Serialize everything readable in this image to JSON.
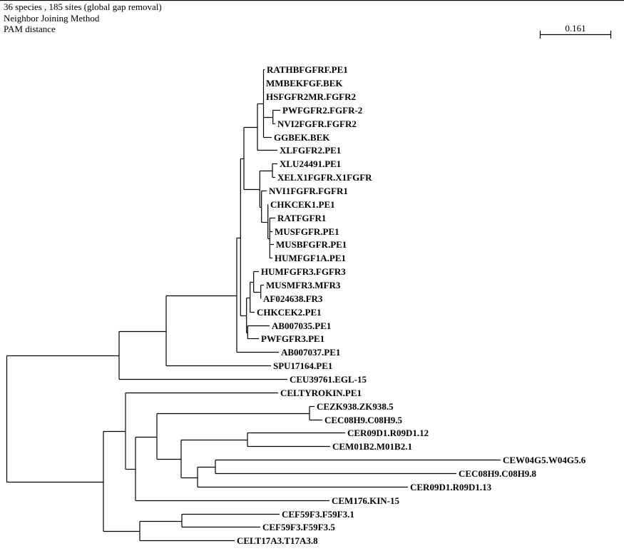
{
  "header": {
    "line1": "36 species , 185 sites (global gap removal)",
    "line2": "Neighbor Joining Method",
    "line3": "PAM distance"
  },
  "scale_bar": {
    "label": "0.161",
    "value": 0.161
  },
  "leaves": [
    "RATHBFGFRF.PE1",
    "MMBEKFGF.BEK",
    "HSFGFR2MR.FGFR2",
    "PWFGFR2.FGFR-2",
    "NVI2FGFR.FGFR2",
    "GGBEK.BEK",
    "XLFGFR2.PE1",
    "XLU24491.PE1",
    "XELX1FGFR.X1FGFR",
    "NVI1FGFR.FGFR1",
    "CHKCEK1.PE1",
    "RATFGFR1",
    "MUSFGFR.PE1",
    "MUSBFGFR.PE1",
    "HUMFGF1A.PE1",
    "HUMFGFR3.FGFR3",
    "MUSMFR3.MFR3",
    "AF024638.FR3",
    "CHKCEK2.PE1",
    "AB007035.PE1",
    "PWFGFR3.PE1",
    "AB007037.PE1",
    "SPU17164.PE1",
    "CEU39761.EGL-15",
    "CELTYROKIN.PE1",
    "CEZK938.ZK938.5",
    "CEC08H9.C08H9.5",
    "CER09D1.R09D1.12",
    "CEM01B2.M01B2.1",
    "CEW04G5.W04G5.6",
    "CEC08H9.C08H9.8",
    "CER09D1.R09D1.13",
    "CEM176.KIN-15",
    "CEF59F3.F59F3.1",
    "CEF59F3.F59F3.5",
    "CELT17A3.T17A3.8"
  ]
}
